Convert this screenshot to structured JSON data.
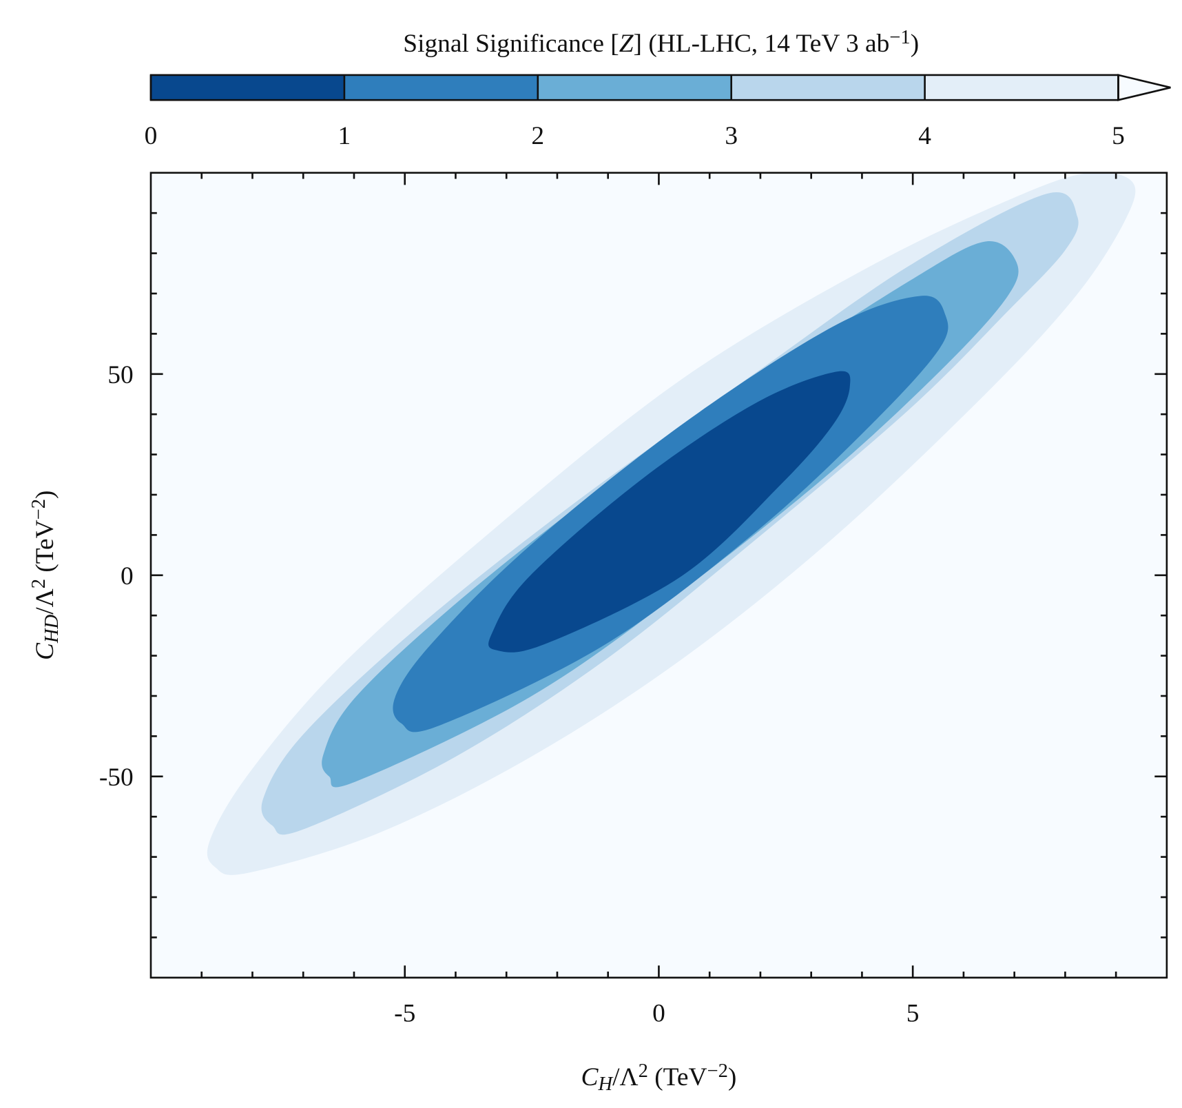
{
  "chart_data": {
    "type": "contour",
    "colorbar": {
      "title": [
        {
          "t": "Signal Significance ["
        },
        {
          "t": "Z",
          "style": "italic"
        },
        {
          "t": "] (HL-LHC, 14 TeV 3 ab"
        },
        {
          "t": "−1",
          "style": "sup"
        },
        {
          "t": ")"
        }
      ],
      "levels": [
        0,
        1,
        2,
        3,
        4,
        5
      ],
      "colors": [
        "#08488e",
        "#2f7ebc",
        "#6aaed6",
        "#b9d6ec",
        "#e3eef8"
      ],
      "extend": "max",
      "over_color": "#f7fbff"
    },
    "xlabel": [
      {
        "t": "C",
        "style": "italic"
      },
      {
        "t": "H",
        "style": "italic-sub"
      },
      {
        "t": "/Λ"
      },
      {
        "t": "2",
        "style": "sup"
      },
      {
        "t": " (TeV"
      },
      {
        "t": "−2",
        "style": "sup"
      },
      {
        "t": ")"
      }
    ],
    "ylabel": [
      {
        "t": "C",
        "style": "italic"
      },
      {
        "t": "HD",
        "style": "italic-sub"
      },
      {
        "t": "/Λ"
      },
      {
        "t": "2",
        "style": "sup"
      },
      {
        "t": " (TeV"
      },
      {
        "t": "−2",
        "style": "sup"
      },
      {
        "t": ")"
      }
    ],
    "xlim": [
      -10,
      10
    ],
    "ylim": [
      -100,
      100
    ],
    "xticks": [
      -5,
      0,
      5
    ],
    "yticks": [
      -50,
      0,
      50
    ],
    "xminorticks": [
      -9,
      -8,
      -7,
      -6,
      -4,
      -3,
      -2,
      -1,
      1,
      2,
      3,
      4,
      6,
      7,
      8,
      9
    ],
    "yminorticks": [
      -90,
      -80,
      -70,
      -60,
      -40,
      -30,
      -20,
      -10,
      10,
      20,
      30,
      40,
      60,
      70,
      80,
      90
    ],
    "contours": [
      {
        "level": 5,
        "x": [
          8.51,
          9.33,
          9.18,
          8.21,
          6.42,
          3.43,
          0.45,
          -2.54,
          -5.52,
          -8.06,
          -8.73,
          -8.84,
          -8.06,
          -6.27,
          -3.28,
          0.45,
          4.18,
          7.16
        ],
        "y": [
          100,
          97.6,
          88.2,
          69.4,
          44.9,
          9.2,
          -20.9,
          -45.3,
          -64.1,
          -73.9,
          -72.6,
          -66.0,
          -49.1,
          -22.7,
          11.1,
          48.7,
          76.9,
          94.7
        ]
      },
      {
        "level": 4,
        "x": [
          7.61,
          8.24,
          7.99,
          6.87,
          4.93,
          1.94,
          -1.04,
          -4.03,
          -7.01,
          -7.61,
          -7.79,
          -7.01,
          -4.78,
          -1.79,
          1.94,
          4.93
        ],
        "y": [
          94.7,
          89.1,
          80.6,
          65.6,
          41.2,
          9.2,
          -20.9,
          -45.3,
          -63.2,
          -62.2,
          -55.6,
          -39.7,
          -13.3,
          16.7,
          50.6,
          76.9
        ]
      },
      {
        "level": 3,
        "x": [
          6.42,
          7.04,
          6.87,
          5.67,
          3.43,
          0.45,
          -2.54,
          -5.97,
          -6.49,
          -6.6,
          -5.97,
          -3.88,
          -1.04,
          1.94,
          4.93
        ],
        "y": [
          82.9,
          77.8,
          69.4,
          52.4,
          26.1,
          -3.9,
          -30.3,
          -51.3,
          -50.0,
          -44.4,
          -30.3,
          -5.8,
          22.4,
          48.7,
          73.1
        ]
      },
      {
        "level": 2,
        "x": [
          5.15,
          5.64,
          5.52,
          4.18,
          1.94,
          -1.04,
          -4.33,
          -5.07,
          -5.19,
          -4.48,
          -2.54,
          0.45,
          3.43
        ],
        "y": [
          69.4,
          64.7,
          56.2,
          37.4,
          11.1,
          -17.1,
          -37.4,
          -36.8,
          -30.3,
          -17.1,
          7.3,
          37.4,
          61.8
        ]
      },
      {
        "level": 1,
        "x": [
          3.51,
          3.76,
          3.43,
          2.39,
          0.45,
          -2.24,
          -3.21,
          -3.28,
          -2.54,
          -0.3,
          1.94
        ],
        "y": [
          50.6,
          46.8,
          37.4,
          22.4,
          -0.2,
          -17.1,
          -18.6,
          -14.3,
          -0.2,
          24.2,
          43.0
        ]
      }
    ]
  }
}
